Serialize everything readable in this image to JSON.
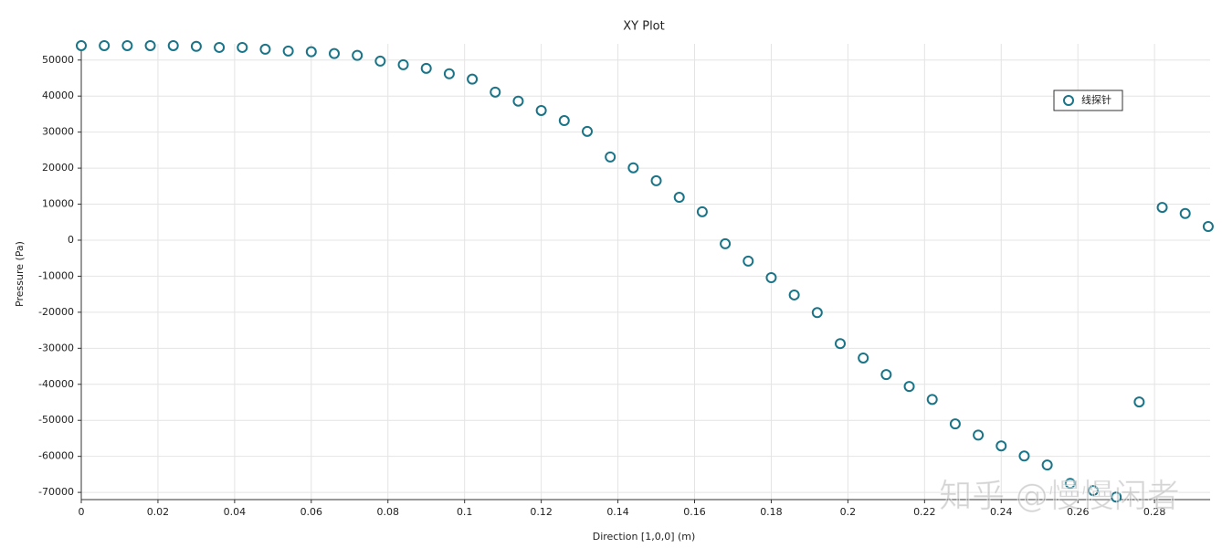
{
  "chart_data": {
    "type": "scatter",
    "title": "XY Plot",
    "x_label": "Direction [1,0,0] (m)",
    "y_label": "Pressure (Pa)",
    "xlim": [
      0,
      0.2945
    ],
    "ylim": [
      -72000,
      54500
    ],
    "xticks": [
      0,
      0.02,
      0.04,
      0.06,
      0.08,
      0.1,
      0.12,
      0.14,
      0.16,
      0.18,
      0.2,
      0.22,
      0.24,
      0.26,
      0.28
    ],
    "yticks": [
      -70000,
      -60000,
      -50000,
      -40000,
      -30000,
      -20000,
      -10000,
      0,
      10000,
      20000,
      30000,
      40000,
      50000
    ],
    "grid": true,
    "legend": "upper right",
    "series": [
      {
        "name": "线探针",
        "color": "#1a7488",
        "x": [
          0,
          0.006,
          0.012,
          0.018,
          0.024,
          0.03,
          0.036,
          0.042,
          0.048,
          0.054,
          0.06,
          0.066,
          0.072,
          0.078,
          0.084,
          0.09,
          0.096,
          0.102,
          0.108,
          0.114,
          0.12,
          0.126,
          0.132,
          0.138,
          0.144,
          0.15,
          0.156,
          0.162,
          0.168,
          0.174,
          0.18,
          0.186,
          0.192,
          0.198,
          0.204,
          0.21,
          0.216,
          0.222,
          0.228,
          0.234,
          0.24,
          0.246,
          0.252,
          0.258,
          0.264,
          0.27,
          0.276,
          0.282,
          0.288,
          0.294
        ],
        "values": [
          54000,
          54000,
          54000,
          54000,
          54000,
          53800,
          53500,
          53500,
          53000,
          52500,
          52300,
          51800,
          51300,
          49700,
          48700,
          47700,
          46200,
          44700,
          41100,
          38600,
          36000,
          33200,
          30200,
          23100,
          20100,
          16500,
          11900,
          7900,
          -1000,
          -5800,
          -10400,
          -15200,
          -20100,
          -28700,
          -32700,
          -37300,
          -40600,
          -44200,
          -51000,
          -54100,
          -57100,
          -59900,
          -62400,
          -67500,
          -69500,
          -71300,
          -44900,
          9100,
          7400,
          3800
        ]
      }
    ],
    "watermark": "知乎 @慢慢闲者"
  }
}
